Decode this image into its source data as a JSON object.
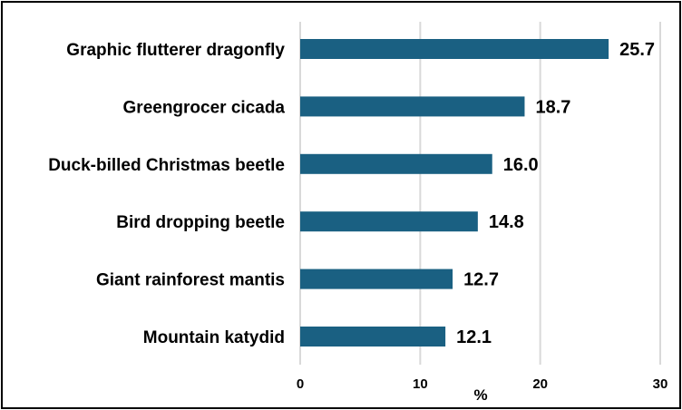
{
  "chart_data": {
    "type": "bar",
    "orientation": "horizontal",
    "categories": [
      "Graphic flutterer dragonfly",
      "Greengrocer cicada",
      "Duck-billed Christmas beetle",
      "Bird dropping beetle",
      "Giant rainforest mantis",
      "Mountain katydid"
    ],
    "values": [
      25.7,
      18.7,
      16.0,
      14.8,
      12.7,
      12.1
    ],
    "value_labels": [
      "25.7",
      "18.7",
      "16.0",
      "14.8",
      "12.7",
      "12.1"
    ],
    "title": "",
    "xlabel": "%",
    "ylabel": "",
    "xlim": [
      0,
      30
    ],
    "xticks": [
      "0",
      "10",
      "20",
      "30"
    ],
    "grid": true,
    "bar_color": "#1a6082"
  }
}
